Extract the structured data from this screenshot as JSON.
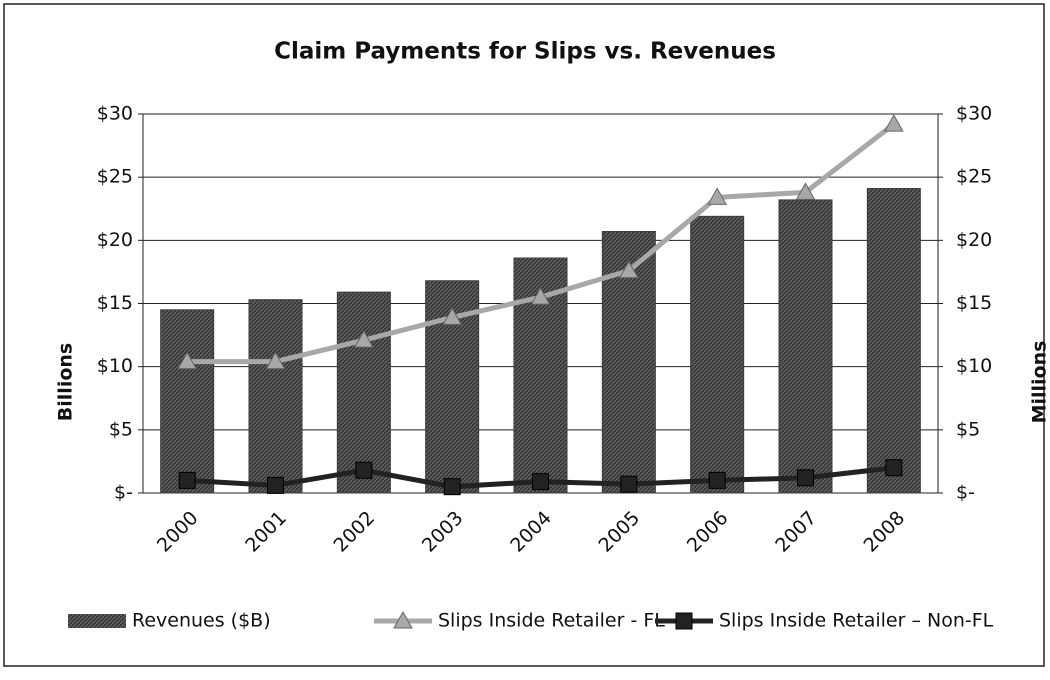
{
  "chart_data": {
    "type": "bar",
    "title": "Claim Payments for Slips vs. Revenues",
    "ylabel": "Billions",
    "y2label": "Millions",
    "categories": [
      "2000",
      "2001",
      "2002",
      "2003",
      "2004",
      "2005",
      "2006",
      "2007",
      "2008"
    ],
    "series": [
      {
        "name": "Revenues ($B)",
        "type": "bar",
        "color": "#3a3a3a",
        "values": [
          14.5,
          15.3,
          15.9,
          16.8,
          18.6,
          20.7,
          21.9,
          23.2,
          24.1
        ]
      },
      {
        "name": "Slips Inside Retailer - FL",
        "type": "line",
        "marker": "triangle",
        "axis": "y2",
        "color": "#a8a8a8",
        "values": [
          10.4,
          10.4,
          12.1,
          13.9,
          15.5,
          17.6,
          23.4,
          23.8,
          29.2
        ]
      },
      {
        "name": "Slips Inside Retailer – Non-FL",
        "type": "line",
        "marker": "square",
        "axis": "y2",
        "color": "#222222",
        "values": [
          1.0,
          0.6,
          1.8,
          0.5,
          0.9,
          0.7,
          1.0,
          1.2,
          2.0
        ]
      }
    ],
    "ylim": [
      0,
      30
    ],
    "yticks": [
      {
        "value": 0,
        "label": "$-"
      },
      {
        "value": 5,
        "label": "$5"
      },
      {
        "value": 10,
        "label": "$10"
      },
      {
        "value": 15,
        "label": "$15"
      },
      {
        "value": 20,
        "label": "$20"
      },
      {
        "value": 25,
        "label": "$25"
      },
      {
        "value": 30,
        "label": "$30"
      }
    ],
    "y2lim": [
      0,
      30
    ],
    "y2ticks": [
      {
        "value": 0,
        "label": "$-"
      },
      {
        "value": 5,
        "label": "$5"
      },
      {
        "value": 10,
        "label": "$10"
      },
      {
        "value": 15,
        "label": "$15"
      },
      {
        "value": 20,
        "label": "$20"
      },
      {
        "value": 25,
        "label": "$25"
      },
      {
        "value": 30,
        "label": "$30"
      }
    ],
    "grid": true,
    "legend": "bottom"
  }
}
